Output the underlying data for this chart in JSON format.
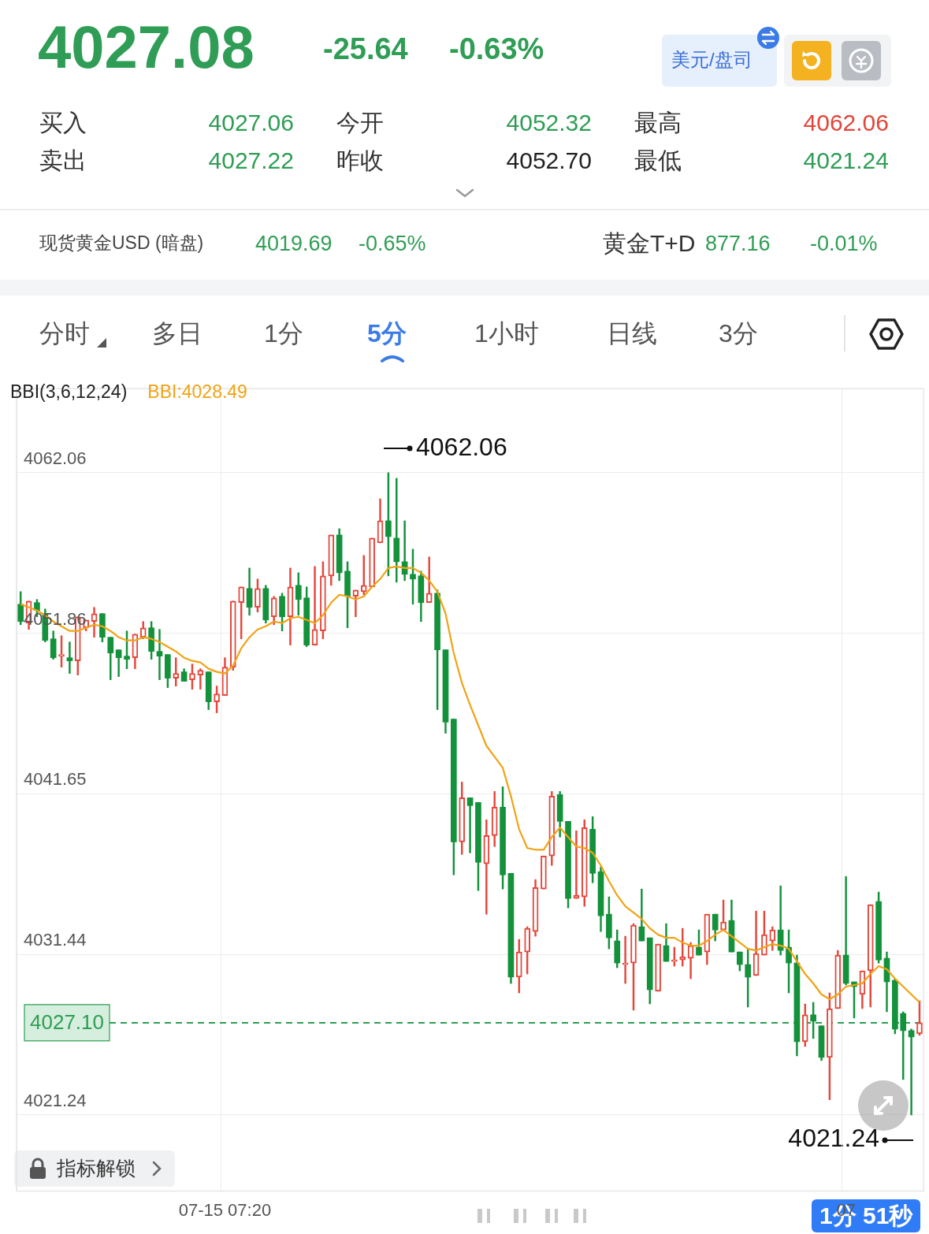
{
  "chart_data": {
    "type": "candlestick",
    "title": "4027.08",
    "categories": [
      null,
      null,
      null,
      null,
      null,
      null,
      null,
      null,
      null,
      null,
      null,
      null,
      null,
      null,
      null,
      null,
      null,
      null,
      null,
      null,
      null,
      null,
      null,
      null,
      null,
      "07-15 07:20",
      null,
      null,
      null,
      null,
      null,
      null,
      null,
      null,
      null,
      null,
      null,
      null,
      null,
      null,
      null,
      null,
      null,
      null,
      null,
      null,
      null,
      null,
      null,
      null,
      null,
      null,
      null,
      null,
      null,
      null,
      null,
      null,
      null,
      null,
      null,
      null,
      null,
      null,
      null,
      null,
      null,
      null,
      null,
      null,
      null,
      null,
      null,
      null,
      null,
      null,
      null,
      null,
      null,
      null,
      null,
      null,
      null,
      null,
      null,
      null,
      null,
      null,
      null,
      null,
      null,
      null,
      null,
      null,
      null,
      null,
      null,
      null,
      null,
      null,
      null,
      "07",
      null,
      null,
      null,
      null,
      null,
      null,
      null,
      null,
      null
    ],
    "ylim": [
      4016.4,
      4067.4
    ],
    "yticks": [
      4021.24,
      4031.44,
      4041.65,
      4051.86,
      4062.06
    ],
    "grid": true,
    "legend": "top left",
    "legend_title": "BBI(3,6,12,24)",
    "marker": "none",
    "series": [
      {
        "type": "candlestick",
        "ohlc": [
          [
            4053.7,
            4054.5,
            4052.4,
            4052.6
          ],
          [
            4052.5,
            4053.9,
            4052.1,
            4053.9
          ],
          [
            4053.8,
            4054.0,
            4052.9,
            4053.3
          ],
          [
            4053.1,
            4053.4,
            4051.3,
            4051.4
          ],
          [
            4051.5,
            4052.0,
            4050.2,
            4050.3
          ],
          [
            4050.4,
            4051.7,
            4049.7,
            4050.5
          ],
          [
            4050.3,
            4051.3,
            4049.3,
            4050.1
          ],
          [
            4050.1,
            4052.9,
            4049.2,
            4052.9
          ],
          [
            4052.2,
            4052.7,
            4052.0,
            4052.7
          ],
          [
            4052.6,
            4053.5,
            4051.6,
            4053.1
          ],
          [
            4053.1,
            4053.1,
            4051.3,
            4051.6
          ],
          [
            4051.6,
            4051.6,
            4048.9,
            4050.6
          ],
          [
            4050.8,
            4050.8,
            4049.1,
            4050.3
          ],
          [
            4050.4,
            4052.0,
            4049.6,
            4050.2
          ],
          [
            4050.3,
            4051.8,
            4049.6,
            4051.8
          ],
          [
            4051.6,
            4052.6,
            4051.5,
            4052.2
          ],
          [
            4052.2,
            4052.6,
            4050.2,
            4050.7
          ],
          [
            4050.7,
            4052.1,
            4048.9,
            4050.4
          ],
          [
            4050.5,
            4050.5,
            4048.4,
            4049.0
          ],
          [
            4049.0,
            4050.3,
            4048.5,
            4049.3
          ],
          [
            4049.4,
            4049.6,
            4048.8,
            4048.8
          ],
          [
            4048.9,
            4049.9,
            4048.3,
            4049.3
          ],
          [
            4049.2,
            4049.6,
            4048.3,
            4049.5
          ],
          [
            4049.4,
            4049.4,
            4047.0,
            4047.5
          ],
          [
            4047.5,
            4048.5,
            4046.8,
            4048.0
          ],
          [
            4047.9,
            4050.3,
            4047.9,
            4049.7
          ],
          [
            4049.7,
            4053.9,
            4049.5,
            4053.9
          ],
          [
            4053.8,
            4054.8,
            4051.5,
            4054.8
          ],
          [
            4054.7,
            4056.0,
            4053.0,
            4053.5
          ],
          [
            4053.5,
            4055.3,
            4053.2,
            4054.7
          ],
          [
            4054.7,
            4054.9,
            4052.5,
            4052.7
          ],
          [
            4052.9,
            4054.2,
            4052.4,
            4054.1
          ],
          [
            4054.2,
            4054.4,
            4052.0,
            4052.9
          ],
          [
            4052.9,
            4056.0,
            4051.1,
            4054.8
          ],
          [
            4054.9,
            4055.7,
            4053.0,
            4054.0
          ],
          [
            4054.1,
            4054.8,
            4051.0,
            4051.1
          ],
          [
            4051.1,
            4056.1,
            4051.1,
            4052.1
          ],
          [
            4052.0,
            4056.4,
            4051.5,
            4055.5
          ],
          [
            4055.5,
            4058.1,
            4054.9,
            4058.1
          ],
          [
            4058.1,
            4058.5,
            4055.2,
            4055.7
          ],
          [
            4055.8,
            4056.4,
            4052.2,
            4054.2
          ],
          [
            4054.2,
            4054.6,
            4052.9,
            4054.6
          ],
          [
            4054.5,
            4056.8,
            4054.3,
            4054.9
          ],
          [
            4054.8,
            4057.9,
            4054.8,
            4057.9
          ],
          [
            4057.6,
            4060.4,
            4057.6,
            4059.0
          ],
          [
            4059.0,
            4062.06,
            4055.5,
            4058.0
          ],
          [
            4057.9,
            4061.7,
            4055.1,
            4056.4
          ],
          [
            4056.4,
            4059.0,
            4055.2,
            4055.6
          ],
          [
            4055.6,
            4057.2,
            4053.7,
            4055.3
          ],
          [
            4055.5,
            4055.8,
            4052.6,
            4053.8
          ],
          [
            4053.8,
            4056.7,
            4053.8,
            4054.4
          ],
          [
            4054.4,
            4054.6,
            4047.0,
            4050.8
          ],
          [
            4050.8,
            4050.8,
            4045.5,
            4046.2
          ],
          [
            4046.4,
            4046.4,
            4036.5,
            4038.6
          ],
          [
            4038.6,
            4042.4,
            4037.8,
            4041.4
          ],
          [
            4041.4,
            4041.4,
            4037.9,
            4040.9
          ],
          [
            4041.1,
            4041.1,
            4035.5,
            4037.3
          ],
          [
            4037.2,
            4040.0,
            4034.0,
            4039.0
          ],
          [
            4039.0,
            4041.8,
            4038.3,
            4040.8
          ],
          [
            4040.8,
            4042.1,
            4035.6,
            4036.5
          ],
          [
            4036.6,
            4036.6,
            4029.6,
            4030.0
          ],
          [
            4030.0,
            4032.4,
            4029.0,
            4031.6
          ],
          [
            4031.6,
            4033.2,
            4030.2,
            4033.1
          ],
          [
            4032.9,
            4036.2,
            4032.6,
            4035.7
          ],
          [
            4035.6,
            4037.7,
            4035.6,
            4037.7
          ],
          [
            4037.7,
            4041.8,
            4037.1,
            4041.5
          ],
          [
            4041.6,
            4041.8,
            4038.9,
            4039.9
          ],
          [
            4039.9,
            4039.9,
            4034.4,
            4035.0
          ],
          [
            4035.0,
            4039.3,
            4035.0,
            4035.2
          ],
          [
            4035.1,
            4040.0,
            4034.5,
            4039.5
          ],
          [
            4039.4,
            4040.2,
            4036.0,
            4036.6
          ],
          [
            4036.7,
            4037.0,
            4032.9,
            4033.9
          ],
          [
            4034.0,
            4035.1,
            4031.8,
            4032.5
          ],
          [
            4032.3,
            4033.0,
            4030.6,
            4030.9
          ],
          [
            4030.8,
            4032.6,
            4029.6,
            4030.9
          ],
          [
            4030.9,
            4033.4,
            4027.9,
            4033.3
          ],
          [
            4033.2,
            4035.6,
            4032.3,
            4032.3
          ],
          [
            4032.5,
            4032.5,
            4028.3,
            4029.2
          ],
          [
            4029.1,
            4032.1,
            4029.1,
            4032.1
          ],
          [
            4032.0,
            4033.4,
            4031.0,
            4031.0
          ],
          [
            4031.0,
            4031.9,
            4030.7,
            4031.1
          ],
          [
            4031.1,
            4033.1,
            4030.7,
            4031.3
          ],
          [
            4031.2,
            4032.2,
            4029.9,
            4032.0
          ],
          [
            4031.9,
            4033.0,
            4031.4,
            4031.4
          ],
          [
            4031.6,
            4034.0,
            4030.8,
            4034.0
          ],
          [
            4034.0,
            4034.0,
            4032.3,
            4033.0
          ],
          [
            4033.0,
            4034.9,
            4033.0,
            4033.5
          ],
          [
            4033.6,
            4034.9,
            4031.6,
            4031.6
          ],
          [
            4031.6,
            4031.6,
            4030.4,
            4030.8
          ],
          [
            4030.8,
            4031.8,
            4028.1,
            4030.0
          ],
          [
            4030.1,
            4034.2,
            4030.1,
            4031.5
          ],
          [
            4031.4,
            4034.2,
            4031.4,
            4032.7
          ],
          [
            4032.3,
            4033.2,
            4031.7,
            4033.0
          ],
          [
            4033.0,
            4035.8,
            4031.4,
            4031.7
          ],
          [
            4031.9,
            4033.0,
            4029.0,
            4030.9
          ],
          [
            4030.9,
            4031.4,
            4025.0,
            4025.9
          ],
          [
            4025.9,
            4028.3,
            4025.6,
            4027.6
          ],
          [
            4027.6,
            4028.4,
            4026.1,
            4027.2
          ],
          [
            4026.9,
            4026.9,
            4024.7,
            4024.9
          ],
          [
            4024.9,
            4029.0,
            4022.2,
            4028.0
          ],
          [
            4028.0,
            4031.7,
            4028.0,
            4031.4
          ],
          [
            4031.4,
            4036.4,
            4029.5,
            4029.6
          ],
          [
            4029.7,
            4029.7,
            4027.4,
            4029.4
          ],
          [
            4028.9,
            4030.4,
            4028.0,
            4030.4
          ],
          [
            4030.4,
            4034.6,
            4028.1,
            4034.6
          ],
          [
            4034.8,
            4035.4,
            4030.9,
            4031.1
          ],
          [
            4031.2,
            4031.6,
            4027.8,
            4029.7
          ],
          [
            4029.8,
            4029.9,
            4026.4,
            4026.7
          ],
          [
            4027.7,
            4027.8,
            4023.5,
            4026.6
          ],
          [
            4026.6,
            4026.7,
            4021.24,
            4026.2
          ],
          [
            4026.4,
            4028.5,
            4026.3,
            4027.1
          ]
        ],
        "colors": [
          "#13913b",
          "#e5473c",
          "#13913b",
          "#13913b",
          "#13913b",
          "#e5473c",
          "#13913b",
          "#e5473c",
          "#e5473c",
          "#e5473c",
          "#13913b",
          "#13913b",
          "#13913b",
          "#13913b",
          "#e5473c",
          "#e5473c",
          "#13913b",
          "#13913b",
          "#13913b",
          "#e5473c",
          "#13913b",
          "#e5473c",
          "#e5473c",
          "#13913b",
          "#e5473c",
          "#e5473c",
          "#e5473c",
          "#e5473c",
          "#13913b",
          "#e5473c",
          "#13913b",
          "#e5473c",
          "#13913b",
          "#e5473c",
          "#13913b",
          "#13913b",
          "#e5473c",
          "#e5473c",
          "#e5473c",
          "#13913b",
          "#13913b",
          "#e5473c",
          "#e5473c",
          "#e5473c",
          "#e5473c",
          "#13913b",
          "#13913b",
          "#13913b",
          "#13913b",
          "#13913b",
          "#e5473c",
          "#13913b",
          "#13913b",
          "#13913b",
          "#e5473c",
          "#13913b",
          "#13913b",
          "#e5473c",
          "#e5473c",
          "#13913b",
          "#13913b",
          "#e5473c",
          "#e5473c",
          "#e5473c",
          "#e5473c",
          "#e5473c",
          "#13913b",
          "#13913b",
          "#e5473c",
          "#e5473c",
          "#13913b",
          "#13913b",
          "#13913b",
          "#13913b",
          "#e5473c",
          "#e5473c",
          "#13913b",
          "#13913b",
          "#e5473c",
          "#13913b",
          "#e5473c",
          "#e5473c",
          "#e5473c",
          "#13913b",
          "#e5473c",
          "#13913b",
          "#e5473c",
          "#13913b",
          "#13913b",
          "#13913b",
          "#e5473c",
          "#e5473c",
          "#e5473c",
          "#13913b",
          "#13913b",
          "#13913b",
          "#e5473c",
          "#13913b",
          "#13913b",
          "#e5473c",
          "#e5473c",
          "#13913b",
          "#13913b",
          "#e5473c",
          "#e5473c",
          "#13913b",
          "#13913b",
          "#13913b",
          "#13913b",
          "#13913b",
          "#e5473c"
        ]
      },
      {
        "type": "line",
        "name": "BBI:4028.49",
        "color": "#f0a314",
        "values": [
          4053.7,
          4053.5,
          4053.3,
          4053.0,
          4052.6,
          4052.3,
          4052.0,
          4052.0,
          4052.2,
          4052.4,
          4052.3,
          4052.0,
          4051.6,
          4051.4,
          4051.4,
          4051.6,
          4051.5,
          4051.3,
          4051.0,
          4050.7,
          4050.3,
          4050.1,
          4050.0,
          4049.6,
          4049.4,
          4049.3,
          4049.8,
          4050.9,
          4051.6,
          4052.1,
          4052.3,
          4052.6,
          4052.5,
          4052.8,
          4052.9,
          4052.7,
          4052.5,
          4053.0,
          4053.8,
          4054.3,
          4054.2,
          4054.0,
          4054.2,
          4054.8,
          4055.3,
          4056.0,
          4056.1,
          4056.0,
          4056.0,
          4055.7,
          4055.2,
          4054.5,
          4053.1,
          4050.6,
          4048.7,
          4047.3,
          4046.0,
          4044.7,
          4044.0,
          4043.3,
          4041.5,
          4039.4,
          4038.2,
          4038.1,
          4038.1,
          4038.9,
          4039.5,
          4038.9,
          4038.3,
          4038.2,
          4037.9,
          4037.1,
          4036.1,
          4035.2,
          4034.5,
          4034.1,
          4033.7,
          4033.1,
          4032.7,
          4032.5,
          4032.5,
          4032.2,
          4032.0,
          4032.0,
          4032.3,
          4032.7,
          4033.0,
          4032.6,
          4032.2,
          4031.8,
          4031.7,
          4031.9,
          4032.1,
          4032.0,
          4031.8,
          4031.0,
          4030.2,
          4029.6,
          4028.9,
          4028.6,
          4028.9,
          4029.4,
          4029.5,
          4029.6,
          4030.2,
          4030.7,
          4030.5,
          4029.9,
          4029.4,
          4028.9,
          4028.4
        ]
      }
    ],
    "ref_lines": [
      {
        "axis": "y",
        "value": 4027.1,
        "label": "4027.10",
        "color": "#2e9e55",
        "line_style": "dashed"
      }
    ],
    "annotations": [
      "-25.64",
      "-0.63%",
      "美元/盘司",
      "买入",
      "4027.06",
      "今开",
      "4052.32",
      "最高",
      "4062.06",
      "卖出",
      "4027.22",
      "昨收",
      "4052.70",
      "最低",
      "4021.24",
      "现货黄金USD (暗盘)",
      "4019.69",
      "-0.65%",
      "黄金T+D",
      "877.16",
      "-0.01%",
      "分时",
      "多日",
      "1分",
      "5分",
      "1小时",
      "日线",
      "3分",
      "指标解锁",
      "1分 51秒",
      "4062.06",
      "4021.24"
    ]
  }
}
